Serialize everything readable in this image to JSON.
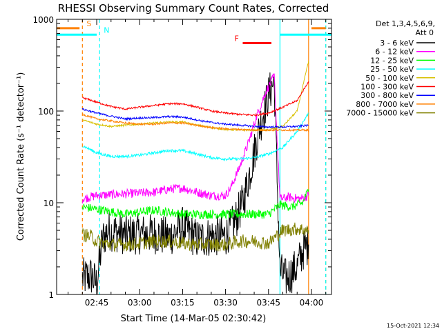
{
  "chart_data": {
    "type": "line",
    "title": "RHESSI Observing Summary Count Rates, Corrected",
    "xlabel": "Start Time (14-Mar-05 02:30:42)",
    "ylabel": "Corrected Count Rate (s⁻¹ detector⁻¹)",
    "footer": "15-Oct-2021 12:34",
    "x_range": [
      "02:31",
      "04:07"
    ],
    "x_ticks": [
      "02:45",
      "03:00",
      "03:15",
      "03:30",
      "03:45",
      "04:00"
    ],
    "y_scale": "log",
    "y_range": [
      1,
      1000
    ],
    "y_ticks": [
      "1",
      "10",
      "100",
      "1000"
    ],
    "legend": {
      "header_line1": "Det 1,3,4,5,6,9,",
      "header_line2": "Att 0",
      "placement": "outside-right"
    },
    "series": [
      {
        "name": "3 - 6 keV",
        "color": "#000000",
        "noise": 0.45,
        "points": [
          [
            "02:40",
            1.5
          ],
          [
            "02:43",
            1.6
          ],
          [
            "02:45",
            1.3
          ],
          [
            "02:47",
            4
          ],
          [
            "02:49",
            5
          ],
          [
            "02:55",
            4.5
          ],
          [
            "03:05",
            4.6
          ],
          [
            "03:10",
            4.2
          ],
          [
            "03:15",
            5.5
          ],
          [
            "03:20",
            4
          ],
          [
            "03:25",
            4.3
          ],
          [
            "03:30",
            4.3
          ],
          [
            "03:33",
            6
          ],
          [
            "03:36",
            10
          ],
          [
            "03:39",
            25
          ],
          [
            "03:42",
            70
          ],
          [
            "03:45",
            150
          ],
          [
            "03:47",
            210
          ],
          [
            "03:49",
            1.8
          ],
          [
            "03:51",
            1.5
          ],
          [
            "03:53",
            1.7
          ],
          [
            "03:55",
            2
          ],
          [
            "03:57",
            3
          ],
          [
            "03:59",
            3.5
          ]
        ]
      },
      {
        "name": "6 - 12 keV",
        "color": "#ff00ff",
        "noise": 0.1,
        "points": [
          [
            "02:40",
            11
          ],
          [
            "02:45",
            12
          ],
          [
            "02:55",
            12.5
          ],
          [
            "03:05",
            13
          ],
          [
            "03:10",
            14
          ],
          [
            "03:15",
            14.5
          ],
          [
            "03:20",
            13
          ],
          [
            "03:25",
            12
          ],
          [
            "03:30",
            12
          ],
          [
            "03:32",
            15
          ],
          [
            "03:35",
            25
          ],
          [
            "03:38",
            45
          ],
          [
            "03:41",
            90
          ],
          [
            "03:44",
            160
          ],
          [
            "03:47",
            240
          ],
          [
            "03:49",
            11
          ],
          [
            "03:52",
            11.5
          ],
          [
            "03:56",
            11
          ],
          [
            "03:59",
            12
          ]
        ]
      },
      {
        "name": "12 - 25 keV",
        "color": "#00ff00",
        "noise": 0.1,
        "points": [
          [
            "02:40",
            9
          ],
          [
            "02:45",
            8.5
          ],
          [
            "02:55",
            7.5
          ],
          [
            "03:05",
            8.3
          ],
          [
            "03:15",
            7.5
          ],
          [
            "03:25",
            7.5
          ],
          [
            "03:35",
            7.5
          ],
          [
            "03:45",
            7.5
          ],
          [
            "03:49",
            9.5
          ],
          [
            "03:53",
            9
          ],
          [
            "03:57",
            10
          ],
          [
            "03:59",
            14
          ]
        ]
      },
      {
        "name": "25 - 50 keV",
        "color": "#00ffff",
        "noise": 0.03,
        "points": [
          [
            "02:40",
            42
          ],
          [
            "02:45",
            35
          ],
          [
            "02:50",
            32
          ],
          [
            "02:55",
            32
          ],
          [
            "03:00",
            33
          ],
          [
            "03:05",
            35
          ],
          [
            "03:10",
            37
          ],
          [
            "03:15",
            37
          ],
          [
            "03:20",
            34
          ],
          [
            "03:25",
            31
          ],
          [
            "03:30",
            30
          ],
          [
            "03:35",
            30
          ],
          [
            "03:40",
            31
          ],
          [
            "03:45",
            34
          ],
          [
            "03:50",
            40
          ],
          [
            "03:55",
            60
          ],
          [
            "03:59",
            95
          ]
        ]
      },
      {
        "name": "50 - 100 keV",
        "color": "#d8c000",
        "noise": 0.02,
        "points": [
          [
            "02:40",
            80
          ],
          [
            "02:45",
            72
          ],
          [
            "02:50",
            68
          ],
          [
            "02:55",
            70
          ],
          [
            "03:00",
            72
          ],
          [
            "03:05",
            74
          ],
          [
            "03:10",
            76
          ],
          [
            "03:15",
            76
          ],
          [
            "03:20",
            70
          ],
          [
            "03:25",
            66
          ],
          [
            "03:30",
            63
          ],
          [
            "03:35",
            62
          ],
          [
            "03:40",
            62
          ],
          [
            "03:45",
            62
          ],
          [
            "03:50",
            68
          ],
          [
            "03:55",
            100
          ],
          [
            "03:59",
            350
          ]
        ]
      },
      {
        "name": "100 - 300 keV",
        "color": "#ff0000",
        "noise": 0.02,
        "points": [
          [
            "02:40",
            140
          ],
          [
            "02:45",
            125
          ],
          [
            "02:50",
            112
          ],
          [
            "02:55",
            105
          ],
          [
            "03:00",
            110
          ],
          [
            "03:05",
            115
          ],
          [
            "03:10",
            120
          ],
          [
            "03:15",
            120
          ],
          [
            "03:20",
            110
          ],
          [
            "03:25",
            100
          ],
          [
            "03:30",
            95
          ],
          [
            "03:35",
            92
          ],
          [
            "03:40",
            90
          ],
          [
            "03:45",
            95
          ],
          [
            "03:50",
            110
          ],
          [
            "03:55",
            130
          ],
          [
            "03:59",
            210
          ]
        ]
      },
      {
        "name": "300 - 800 keV",
        "color": "#0000ff",
        "noise": 0.02,
        "points": [
          [
            "02:40",
            105
          ],
          [
            "02:45",
            95
          ],
          [
            "02:50",
            88
          ],
          [
            "02:55",
            82
          ],
          [
            "03:00",
            84
          ],
          [
            "03:05",
            85
          ],
          [
            "03:10",
            87
          ],
          [
            "03:15",
            86
          ],
          [
            "03:20",
            80
          ],
          [
            "03:25",
            75
          ],
          [
            "03:30",
            72
          ],
          [
            "03:35",
            70
          ],
          [
            "03:40",
            68
          ],
          [
            "03:45",
            67
          ],
          [
            "03:50",
            67
          ],
          [
            "03:55",
            68
          ],
          [
            "03:59",
            70
          ]
        ]
      },
      {
        "name": "800 - 7000 keV",
        "color": "#ff8000",
        "noise": 0.02,
        "points": [
          [
            "02:40",
            92
          ],
          [
            "02:45",
            82
          ],
          [
            "02:50",
            78
          ],
          [
            "02:55",
            74
          ],
          [
            "03:00",
            72
          ],
          [
            "03:05",
            72
          ],
          [
            "03:10",
            74
          ],
          [
            "03:15",
            74
          ],
          [
            "03:20",
            70
          ],
          [
            "03:25",
            66
          ],
          [
            "03:30",
            64
          ],
          [
            "03:35",
            63
          ],
          [
            "03:40",
            62
          ],
          [
            "03:45",
            62
          ],
          [
            "03:50",
            62
          ],
          [
            "03:55",
            62
          ],
          [
            "03:59",
            62
          ]
        ]
      },
      {
        "name": "7000 - 15000 keV",
        "color": "#808000",
        "noise": 0.15,
        "points": [
          [
            "02:40",
            4.5
          ],
          [
            "02:43",
            4.3
          ],
          [
            "02:45",
            3.8
          ],
          [
            "02:50",
            3.5
          ],
          [
            "02:55",
            3.5
          ],
          [
            "03:00",
            3.6
          ],
          [
            "03:05",
            3.8
          ],
          [
            "03:10",
            3.8
          ],
          [
            "03:15",
            3.6
          ],
          [
            "03:20",
            3.5
          ],
          [
            "03:25",
            3.5
          ],
          [
            "03:30",
            3.5
          ],
          [
            "03:35",
            3.8
          ],
          [
            "03:40",
            3.8
          ],
          [
            "03:45",
            3.6
          ],
          [
            "03:50",
            5
          ],
          [
            "03:55",
            5.2
          ],
          [
            "03:59",
            5
          ]
        ]
      }
    ],
    "annotations": [
      {
        "label": "S",
        "color": "#ff8000",
        "time": "02:40",
        "bar_start": "02:31",
        "bar_end": "02:39",
        "y": 800
      },
      {
        "label": "N",
        "color": "#00ffff",
        "time": "02:46",
        "bar_start": "02:31",
        "bar_end": "02:45",
        "y": 680
      },
      {
        "label": "F",
        "color": "#ff0000",
        "time": null,
        "bar_start": "03:36",
        "bar_end": "03:46",
        "y": 550
      }
    ],
    "vertical_lines": [
      {
        "time": "02:40",
        "color": "#ff8000",
        "style": "dashed"
      },
      {
        "time": "02:46",
        "color": "#00ffff",
        "style": "dashed"
      },
      {
        "time": "03:49",
        "color": "#00ffff",
        "style": "solid"
      },
      {
        "time": "03:59",
        "color": "#ff8000",
        "style": "solid"
      },
      {
        "time": "04:05",
        "color": "#ff8000",
        "style": "dashed"
      },
      {
        "time": "04:05",
        "color": "#00ffff",
        "style": "dashed"
      }
    ],
    "top_right_bars": [
      {
        "color": "#00ffff",
        "start": "03:49",
        "end": "04:07",
        "y": 680
      },
      {
        "color": "#ff8000",
        "start": "04:00",
        "end": "04:05",
        "y": 800
      }
    ]
  }
}
